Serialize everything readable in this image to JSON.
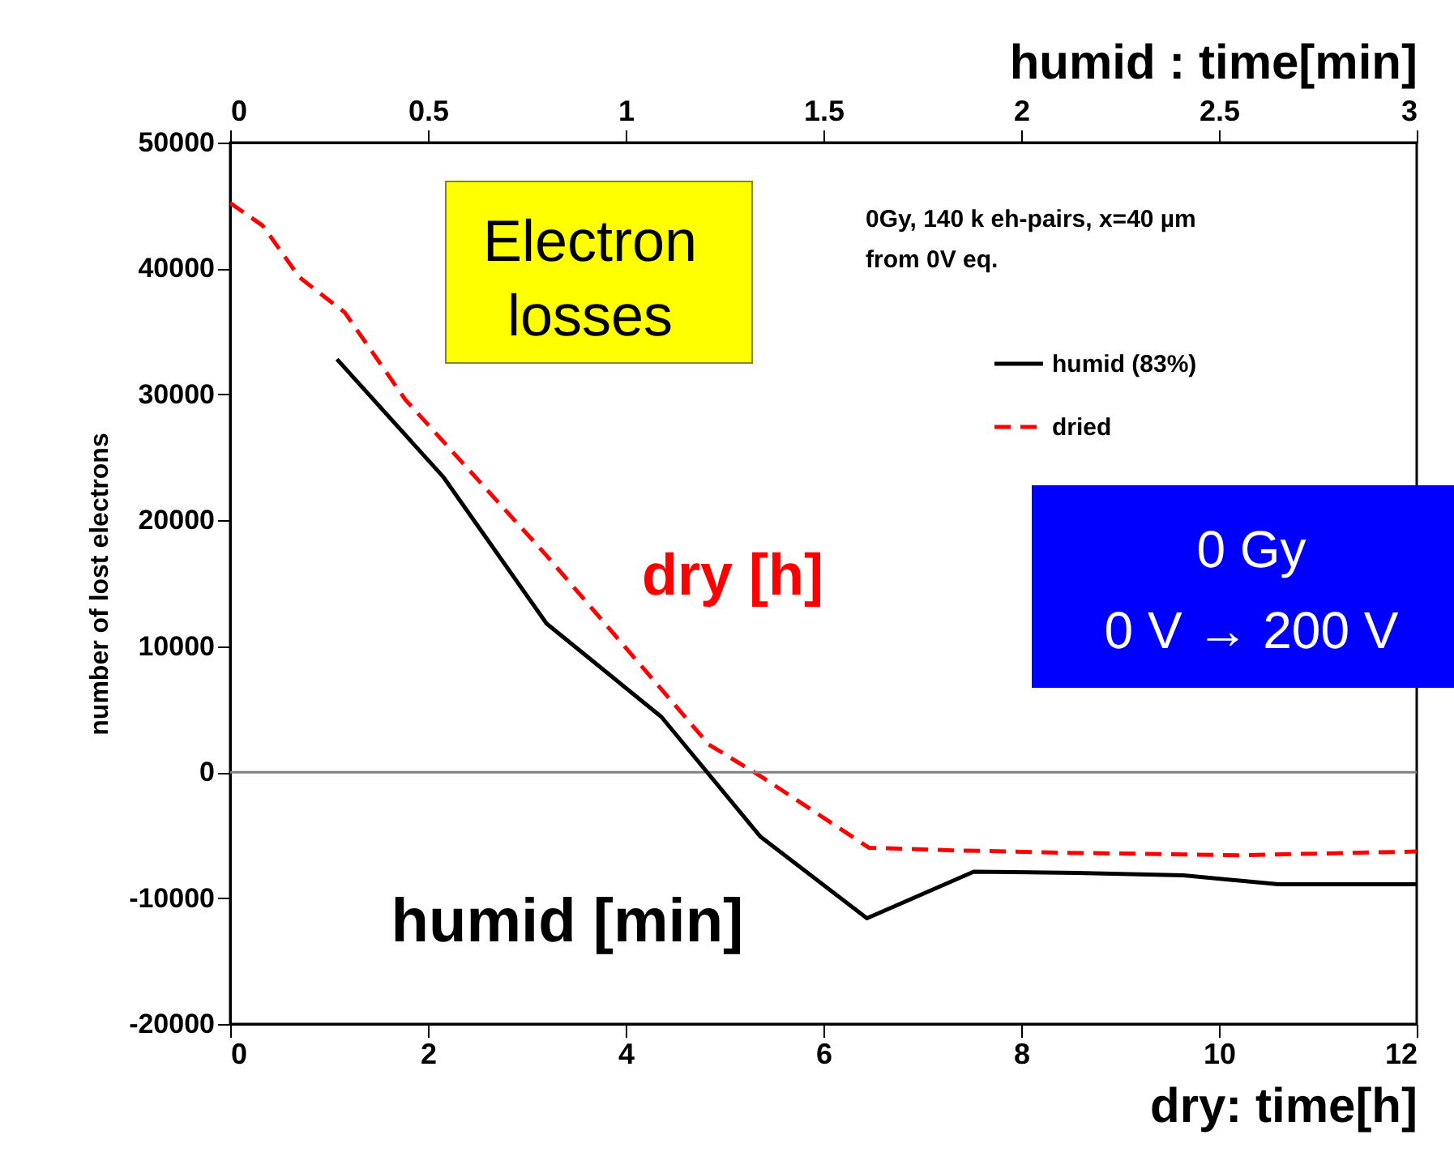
{
  "chart_data": {
    "type": "line",
    "xlabel": "dry: time[h]",
    "x2label": "humid : time[min]",
    "ylabel": "number of lost electrons",
    "xlim": [
      0,
      12
    ],
    "xticks": [
      0,
      2,
      4,
      6,
      8,
      10,
      12
    ],
    "x2lim": [
      0,
      3
    ],
    "x2ticks": [
      0,
      0.5,
      1,
      1.5,
      2,
      2.5,
      3
    ],
    "ylim": [
      -20000,
      50000
    ],
    "yticks": [
      -20000,
      -10000,
      0,
      10000,
      20000,
      30000,
      40000,
      50000
    ],
    "grid": false,
    "legend": "top right",
    "series": [
      {
        "name": "humid (83%)",
        "color": "#000000",
        "line_style": "solid",
        "axis": "x2",
        "x": [
          0.27,
          0.54,
          0.8,
          1.09,
          1.34,
          1.61,
          1.88,
          2.14,
          2.41,
          2.65,
          3.0
        ],
        "values": [
          32800,
          23400,
          11800,
          4400,
          -5100,
          -11600,
          -7900,
          -8000,
          -8200,
          -8900,
          -8900
        ]
      },
      {
        "name": "dried",
        "color": "#ff0000",
        "line_style": "dashed",
        "x": [
          0,
          0.33,
          0.7,
          1.16,
          1.77,
          3.2,
          4.84,
          5.38,
          6.46,
          7.26,
          8.46,
          10.2,
          12
        ],
        "values": [
          45200,
          43400,
          39300,
          36500,
          29600,
          17200,
          2200,
          -400,
          -6000,
          -6200,
          -6400,
          -6600,
          -6300
        ]
      }
    ],
    "ref_lines": [
      {
        "axis": "y",
        "value": 0,
        "color": "#808080"
      }
    ],
    "annotations": [
      "Electron losses",
      "0Gy, 140 k eh-pairs, x=40 µm",
      "from 0V eq.",
      "0 Gy",
      "0 V → 200 V",
      "dry [h]",
      "humid [min]"
    ]
  }
}
